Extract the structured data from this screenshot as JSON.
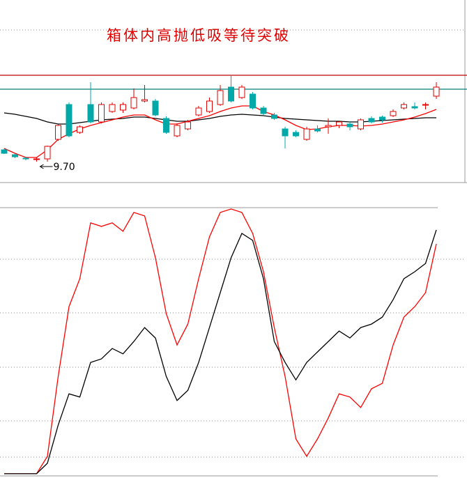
{
  "chart_data": [
    {
      "type": "candlestick",
      "title": "箱体内高抛低吸等待突破",
      "title_color": "#e00000",
      "ylim": [
        9.4,
        12.02
      ],
      "up_color": "#e00000",
      "down_color": "#00a8a8",
      "open": [
        9.87,
        9.8,
        9.75,
        9.73,
        9.74,
        10.02,
        10.52,
        10.12,
        10.52,
        10.27,
        10.42,
        10.44,
        10.47,
        10.57,
        10.57,
        10.32,
        10.07,
        10.17,
        10.37,
        10.42,
        10.52,
        10.77,
        10.62,
        10.67,
        10.47,
        10.37,
        10.17,
        10.12,
        10.02,
        10.17,
        10.2,
        10.22,
        10.24,
        10.17,
        10.32,
        10.34,
        10.36,
        10.47,
        10.49,
        10.51,
        10.64
      ],
      "high": [
        9.89,
        9.82,
        9.77,
        9.76,
        9.93,
        10.24,
        10.55,
        10.22,
        10.84,
        10.55,
        10.55,
        10.55,
        10.75,
        10.8,
        10.6,
        10.35,
        10.25,
        10.3,
        10.5,
        10.62,
        10.8,
        10.94,
        10.8,
        10.7,
        10.5,
        10.4,
        10.2,
        10.15,
        10.2,
        10.22,
        10.32,
        10.28,
        10.28,
        10.32,
        10.35,
        10.36,
        10.45,
        10.55,
        10.55,
        10.55,
        10.84
      ],
      "low": [
        9.81,
        9.75,
        9.72,
        9.7,
        9.7,
        10.0,
        10.05,
        10.1,
        10.25,
        10.25,
        10.4,
        10.4,
        10.45,
        10.55,
        10.35,
        10.1,
        10.05,
        10.15,
        10.35,
        10.4,
        10.5,
        10.55,
        10.6,
        10.45,
        10.37,
        10.3,
        9.89,
        10.05,
        10.0,
        10.12,
        10.1,
        10.18,
        10.15,
        10.15,
        10.25,
        10.26,
        10.34,
        10.45,
        10.45,
        10.45,
        10.6
      ],
      "close": [
        9.82,
        9.77,
        9.74,
        9.74,
        9.92,
        10.22,
        10.07,
        10.2,
        10.27,
        10.52,
        10.52,
        10.52,
        10.62,
        10.59,
        10.37,
        10.12,
        10.22,
        10.27,
        10.47,
        10.57,
        10.72,
        10.57,
        10.77,
        10.47,
        10.39,
        10.32,
        10.07,
        10.07,
        10.17,
        10.14,
        10.22,
        10.27,
        10.2,
        10.3,
        10.27,
        10.3,
        10.42,
        10.52,
        10.47,
        10.52,
        10.77
      ],
      "series": [
        {
          "color": "#000000",
          "values": [
            10.4,
            10.38,
            10.35,
            10.32,
            10.27,
            10.24,
            10.24,
            10.26,
            10.28,
            10.3,
            10.31,
            10.32,
            10.34,
            10.34,
            10.32,
            10.3,
            10.28,
            10.28,
            10.3,
            10.32,
            10.35,
            10.37,
            10.38,
            10.37,
            10.36,
            10.34,
            10.32,
            10.31,
            10.3,
            10.29,
            10.28,
            10.28,
            10.27,
            10.27,
            10.28,
            10.29,
            10.3,
            10.31,
            10.32,
            10.33,
            10.33
          ]
        },
        {
          "color": "#ff0000",
          "values": [
            9.89,
            9.82,
            9.76,
            9.76,
            9.87,
            10.02,
            10.1,
            10.17,
            10.22,
            10.26,
            10.3,
            10.34,
            10.37,
            10.37,
            10.3,
            10.24,
            10.24,
            10.28,
            10.32,
            10.36,
            10.42,
            10.47,
            10.5,
            10.5,
            10.42,
            10.37,
            10.3,
            10.22,
            10.16,
            10.17,
            10.2,
            10.22,
            10.22,
            10.21,
            10.22,
            10.24,
            10.27,
            10.3,
            10.34,
            10.39,
            10.45
          ]
        }
      ],
      "levels": [
        {
          "value": 10.94,
          "color": "#c00000"
        },
        {
          "value": 10.74,
          "color": "#008080"
        }
      ],
      "low_label": {
        "value": 9.7,
        "label": "9.70"
      }
    },
    {
      "type": "line",
      "ylim": [
        0,
        100
      ],
      "series": [
        {
          "color": "#ff0000",
          "values": [
            0.8,
            0.8,
            0.8,
            0.8,
            7.3,
            37.1,
            63.1,
            73.5,
            94.3,
            93.0,
            94.3,
            91.2,
            98.2,
            96.9,
            81.3,
            60.5,
            48.8,
            56.6,
            73.5,
            89.1,
            98.2,
            99.5,
            98.2,
            90.4,
            76.1,
            55.3,
            37.1,
            13.8,
            7.3,
            13.8,
            21.6,
            30.6,
            29.4,
            25.5,
            32.5,
            34.5,
            48.8,
            59.2,
            63.1,
            68.3,
            86.5
          ]
        },
        {
          "color": "#000000",
          "values": [
            0.8,
            0.8,
            0.8,
            0.8,
            4.7,
            19.0,
            30.6,
            29.4,
            42.3,
            43.6,
            47.5,
            45.5,
            50.1,
            55.3,
            51.4,
            37.1,
            28.1,
            31.9,
            42.3,
            55.3,
            68.3,
            81.3,
            90.4,
            87.8,
            73.5,
            50.1,
            42.3,
            35.8,
            42.3,
            46.2,
            50.1,
            54.0,
            51.4,
            55.3,
            56.6,
            59.2,
            65.7,
            73.5,
            76.1,
            79.2,
            91.7
          ]
        }
      ]
    }
  ]
}
